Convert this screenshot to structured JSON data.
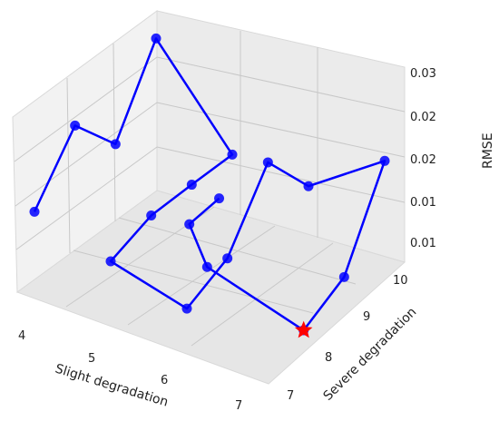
{
  "chart_data": {
    "type": "line",
    "projection": "3d",
    "xlabel": "Slight degradation",
    "ylabel": "Severe degradation",
    "zlabel": "RMSE",
    "x_ticks": [
      "4",
      "5",
      "6",
      "7"
    ],
    "y_ticks": [
      "7",
      "8",
      "9",
      "10"
    ],
    "z_ticks": [
      "0.01",
      "0.01",
      "0.02",
      "0.02",
      "0.03"
    ],
    "series": [
      {
        "color": "#0000ff",
        "marker": "circle",
        "points": [
          {
            "x": 4,
            "y": 7,
            "z": 0.0148
          },
          {
            "x": 4,
            "y": 8,
            "z": 0.0226
          },
          {
            "x": 4,
            "y": 9,
            "z": 0.0164
          },
          {
            "x": 4,
            "y": 10,
            "z": 0.0268
          },
          {
            "x": 5,
            "y": 10,
            "z": 0.015
          },
          {
            "x": 5,
            "y": 9,
            "z": 0.0147
          },
          {
            "x": 5,
            "y": 8,
            "z": 0.0143
          },
          {
            "x": 5,
            "y": 7,
            "z": 0.0119
          },
          {
            "x": 6,
            "y": 7,
            "z": 0.0093
          },
          {
            "x": 6,
            "y": 8,
            "z": 0.0123
          },
          {
            "x": 6,
            "y": 9,
            "z": 0.0214
          },
          {
            "x": 6,
            "y": 10,
            "z": 0.0145
          },
          {
            "x": 7,
            "y": 10,
            "z": 0.0216
          },
          {
            "x": 7,
            "y": 9,
            "z": 0.0098
          },
          {
            "x": 7,
            "y": 8,
            "z": 0.0064
          },
          {
            "x": 6,
            "y": 7.5,
            "z": 0.013
          },
          {
            "x": 5.5,
            "y": 8,
            "z": 0.015
          },
          {
            "x": 5.2,
            "y": 9.3,
            "z": 0.0125
          }
        ]
      }
    ],
    "best_marker": {
      "x": 7,
      "y": 8,
      "z": 0.0064,
      "color": "#ff0000",
      "shape": "star"
    }
  }
}
